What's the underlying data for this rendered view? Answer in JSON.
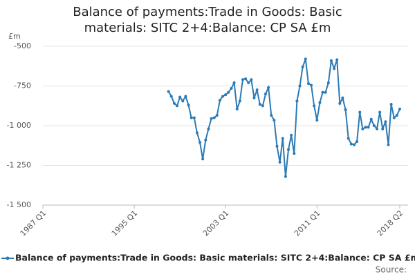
{
  "chart_data": {
    "type": "line",
    "title": "Balance of payments:Trade in Goods: Basic materials: SITC 2+4:Balance: CP SA £m",
    "ylabel": "£m",
    "source": "Source:",
    "categories": [
      "1987 Q1",
      null,
      null,
      null,
      null,
      null,
      null,
      null,
      null,
      null,
      null,
      null,
      null,
      null,
      null,
      null,
      null,
      null,
      null,
      null,
      null,
      null,
      null,
      null,
      null,
      null,
      null,
      null,
      null,
      null,
      null,
      null,
      "1995 Q1",
      null,
      null,
      null,
      null,
      null,
      null,
      null,
      null,
      null,
      null,
      null,
      null,
      null,
      null,
      null,
      null,
      null,
      null,
      null,
      null,
      null,
      null,
      null,
      null,
      null,
      null,
      null,
      null,
      null,
      null,
      null,
      "2003 Q1",
      null,
      null,
      null,
      null,
      null,
      null,
      null,
      null,
      null,
      null,
      null,
      null,
      null,
      null,
      null,
      null,
      null,
      null,
      null,
      null,
      null,
      null,
      null,
      null,
      null,
      null,
      null,
      null,
      null,
      null,
      null,
      "2011 Q1",
      null,
      null,
      null,
      null,
      null,
      null,
      null,
      null,
      null,
      null,
      null,
      null,
      null,
      null,
      null,
      null,
      null,
      null,
      null,
      null,
      null,
      null,
      null,
      null,
      null,
      null,
      null,
      null,
      "2018 Q2"
    ],
    "series": [
      {
        "name": "Balance of payments:Trade in Goods: Basic materials: SITC 2+4:Balance: CP SA £m",
        "color": "#2a7ab5",
        "values": [
          null,
          null,
          null,
          null,
          null,
          null,
          null,
          null,
          null,
          null,
          null,
          null,
          null,
          null,
          null,
          null,
          null,
          null,
          null,
          null,
          null,
          null,
          null,
          null,
          null,
          null,
          null,
          null,
          null,
          null,
          null,
          null,
          null,
          null,
          null,
          null,
          null,
          null,
          null,
          null,
          null,
          null,
          null,
          null,
          -785,
          -815,
          -860,
          -875,
          -820,
          -845,
          -815,
          -870,
          -950,
          -950,
          -1045,
          -1105,
          -1210,
          -1090,
          -1020,
          -955,
          -950,
          -935,
          -840,
          -815,
          -805,
          -790,
          -765,
          -730,
          -895,
          -845,
          -710,
          -705,
          -730,
          -710,
          -825,
          -775,
          -865,
          -875,
          -800,
          -760,
          -935,
          -965,
          -1130,
          -1230,
          -1080,
          -1320,
          -1150,
          -1060,
          -1175,
          -845,
          -750,
          -630,
          -580,
          -735,
          -745,
          -875,
          -965,
          -855,
          -790,
          -790,
          -730,
          -590,
          -640,
          -585,
          -860,
          -825,
          -900,
          -1080,
          -1115,
          -1120,
          -1100,
          -915,
          -1020,
          -1010,
          -1010,
          -960,
          -1000,
          -1020,
          -915,
          -1020,
          -975,
          -1120,
          -865,
          -950,
          -935,
          -895
        ]
      }
    ],
    "ylim": [
      -1500,
      -500
    ],
    "yticks": [
      {
        "value": -1500,
        "label": "-1 500"
      },
      {
        "value": -1250,
        "label": "-1 250"
      },
      {
        "value": -1000,
        "label": "-1 000"
      },
      -750,
      -500
    ],
    "grid": true
  }
}
